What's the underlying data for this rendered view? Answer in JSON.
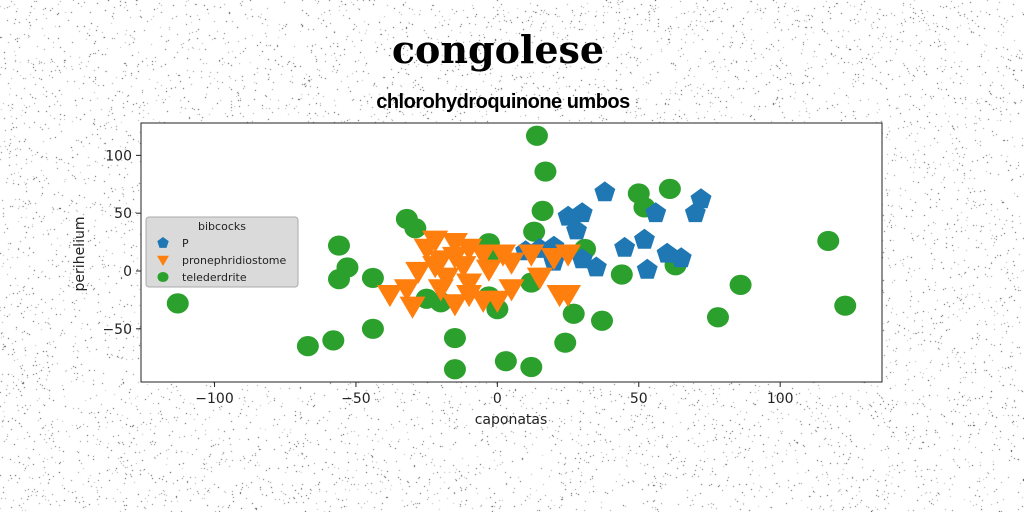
{
  "figure": {
    "suptitle": "congolese",
    "title": "chlorohydroquinone umbos"
  },
  "chart_data": {
    "type": "scatter",
    "title": "chlorohydroquinone umbos",
    "xlabel": "caponatas",
    "ylabel": "perihelium",
    "xlim": [
      -126,
      136
    ],
    "ylim": [
      -96,
      128
    ],
    "xticks": [
      -100,
      -50,
      0,
      50,
      100
    ],
    "yticks": [
      -50,
      0,
      50,
      100
    ],
    "grid": false,
    "legend": {
      "title": "bibcocks",
      "placement": "center-left"
    },
    "series": [
      {
        "name": "P",
        "marker": "pentagon",
        "color": "#1f77b4",
        "points": [
          [
            38,
            68
          ],
          [
            25,
            47
          ],
          [
            30,
            50
          ],
          [
            28,
            35
          ],
          [
            45,
            20
          ],
          [
            52,
            27
          ],
          [
            56,
            50
          ],
          [
            72,
            62
          ],
          [
            70,
            50
          ],
          [
            60,
            15
          ],
          [
            65,
            11
          ],
          [
            53,
            1
          ],
          [
            35,
            3
          ],
          [
            30,
            10
          ],
          [
            20,
            8
          ],
          [
            10,
            17
          ],
          [
            15,
            19
          ],
          [
            20,
            21
          ]
        ]
      },
      {
        "name": "pronephridiostome",
        "marker": "triangle_down",
        "color": "#ff7f0e",
        "points": [
          [
            -22,
            27
          ],
          [
            -15,
            25
          ],
          [
            -25,
            20
          ],
          [
            -10,
            20
          ],
          [
            -5,
            15
          ],
          [
            2,
            15
          ],
          [
            -15,
            13
          ],
          [
            -20,
            10
          ],
          [
            -28,
            0
          ],
          [
            -22,
            5
          ],
          [
            -12,
            5
          ],
          [
            -3,
            2
          ],
          [
            5,
            8
          ],
          [
            12,
            15
          ],
          [
            20,
            12
          ],
          [
            25,
            15
          ],
          [
            -32,
            -15
          ],
          [
            -38,
            -20
          ],
          [
            -30,
            -30
          ],
          [
            -20,
            -15
          ],
          [
            -10,
            -20
          ],
          [
            -15,
            -28
          ],
          [
            -5,
            -25
          ],
          [
            0,
            -25
          ],
          [
            -18,
            -5
          ],
          [
            -10,
            -10
          ],
          [
            5,
            -15
          ],
          [
            22,
            -20
          ],
          [
            25,
            -20
          ],
          [
            15,
            -5
          ]
        ]
      },
      {
        "name": "telederdrite",
        "marker": "circle",
        "color": "#2ca02c",
        "points": [
          [
            -113,
            -28
          ],
          [
            -67,
            -65
          ],
          [
            -58,
            -60
          ],
          [
            -56,
            22
          ],
          [
            -53,
            3
          ],
          [
            -56,
            -7
          ],
          [
            -44,
            -6
          ],
          [
            -44,
            -50
          ],
          [
            -32,
            45
          ],
          [
            -29,
            37
          ],
          [
            -25,
            -24
          ],
          [
            -20,
            -27
          ],
          [
            -15,
            -58
          ],
          [
            -15,
            -85
          ],
          [
            -3,
            14
          ],
          [
            -3,
            24
          ],
          [
            -3,
            -22
          ],
          [
            3,
            -78
          ],
          [
            0,
            -33
          ],
          [
            12,
            -83
          ],
          [
            12,
            -10
          ],
          [
            14,
            117
          ],
          [
            17,
            86
          ],
          [
            16,
            52
          ],
          [
            13,
            34
          ],
          [
            24,
            -62
          ],
          [
            27,
            -37
          ],
          [
            31,
            19
          ],
          [
            37,
            -43
          ],
          [
            44,
            -3
          ],
          [
            50,
            67
          ],
          [
            52,
            55
          ],
          [
            61,
            71
          ],
          [
            63,
            5
          ],
          [
            78,
            -40
          ],
          [
            86,
            -12
          ],
          [
            117,
            26
          ],
          [
            123,
            -30
          ]
        ]
      }
    ]
  }
}
